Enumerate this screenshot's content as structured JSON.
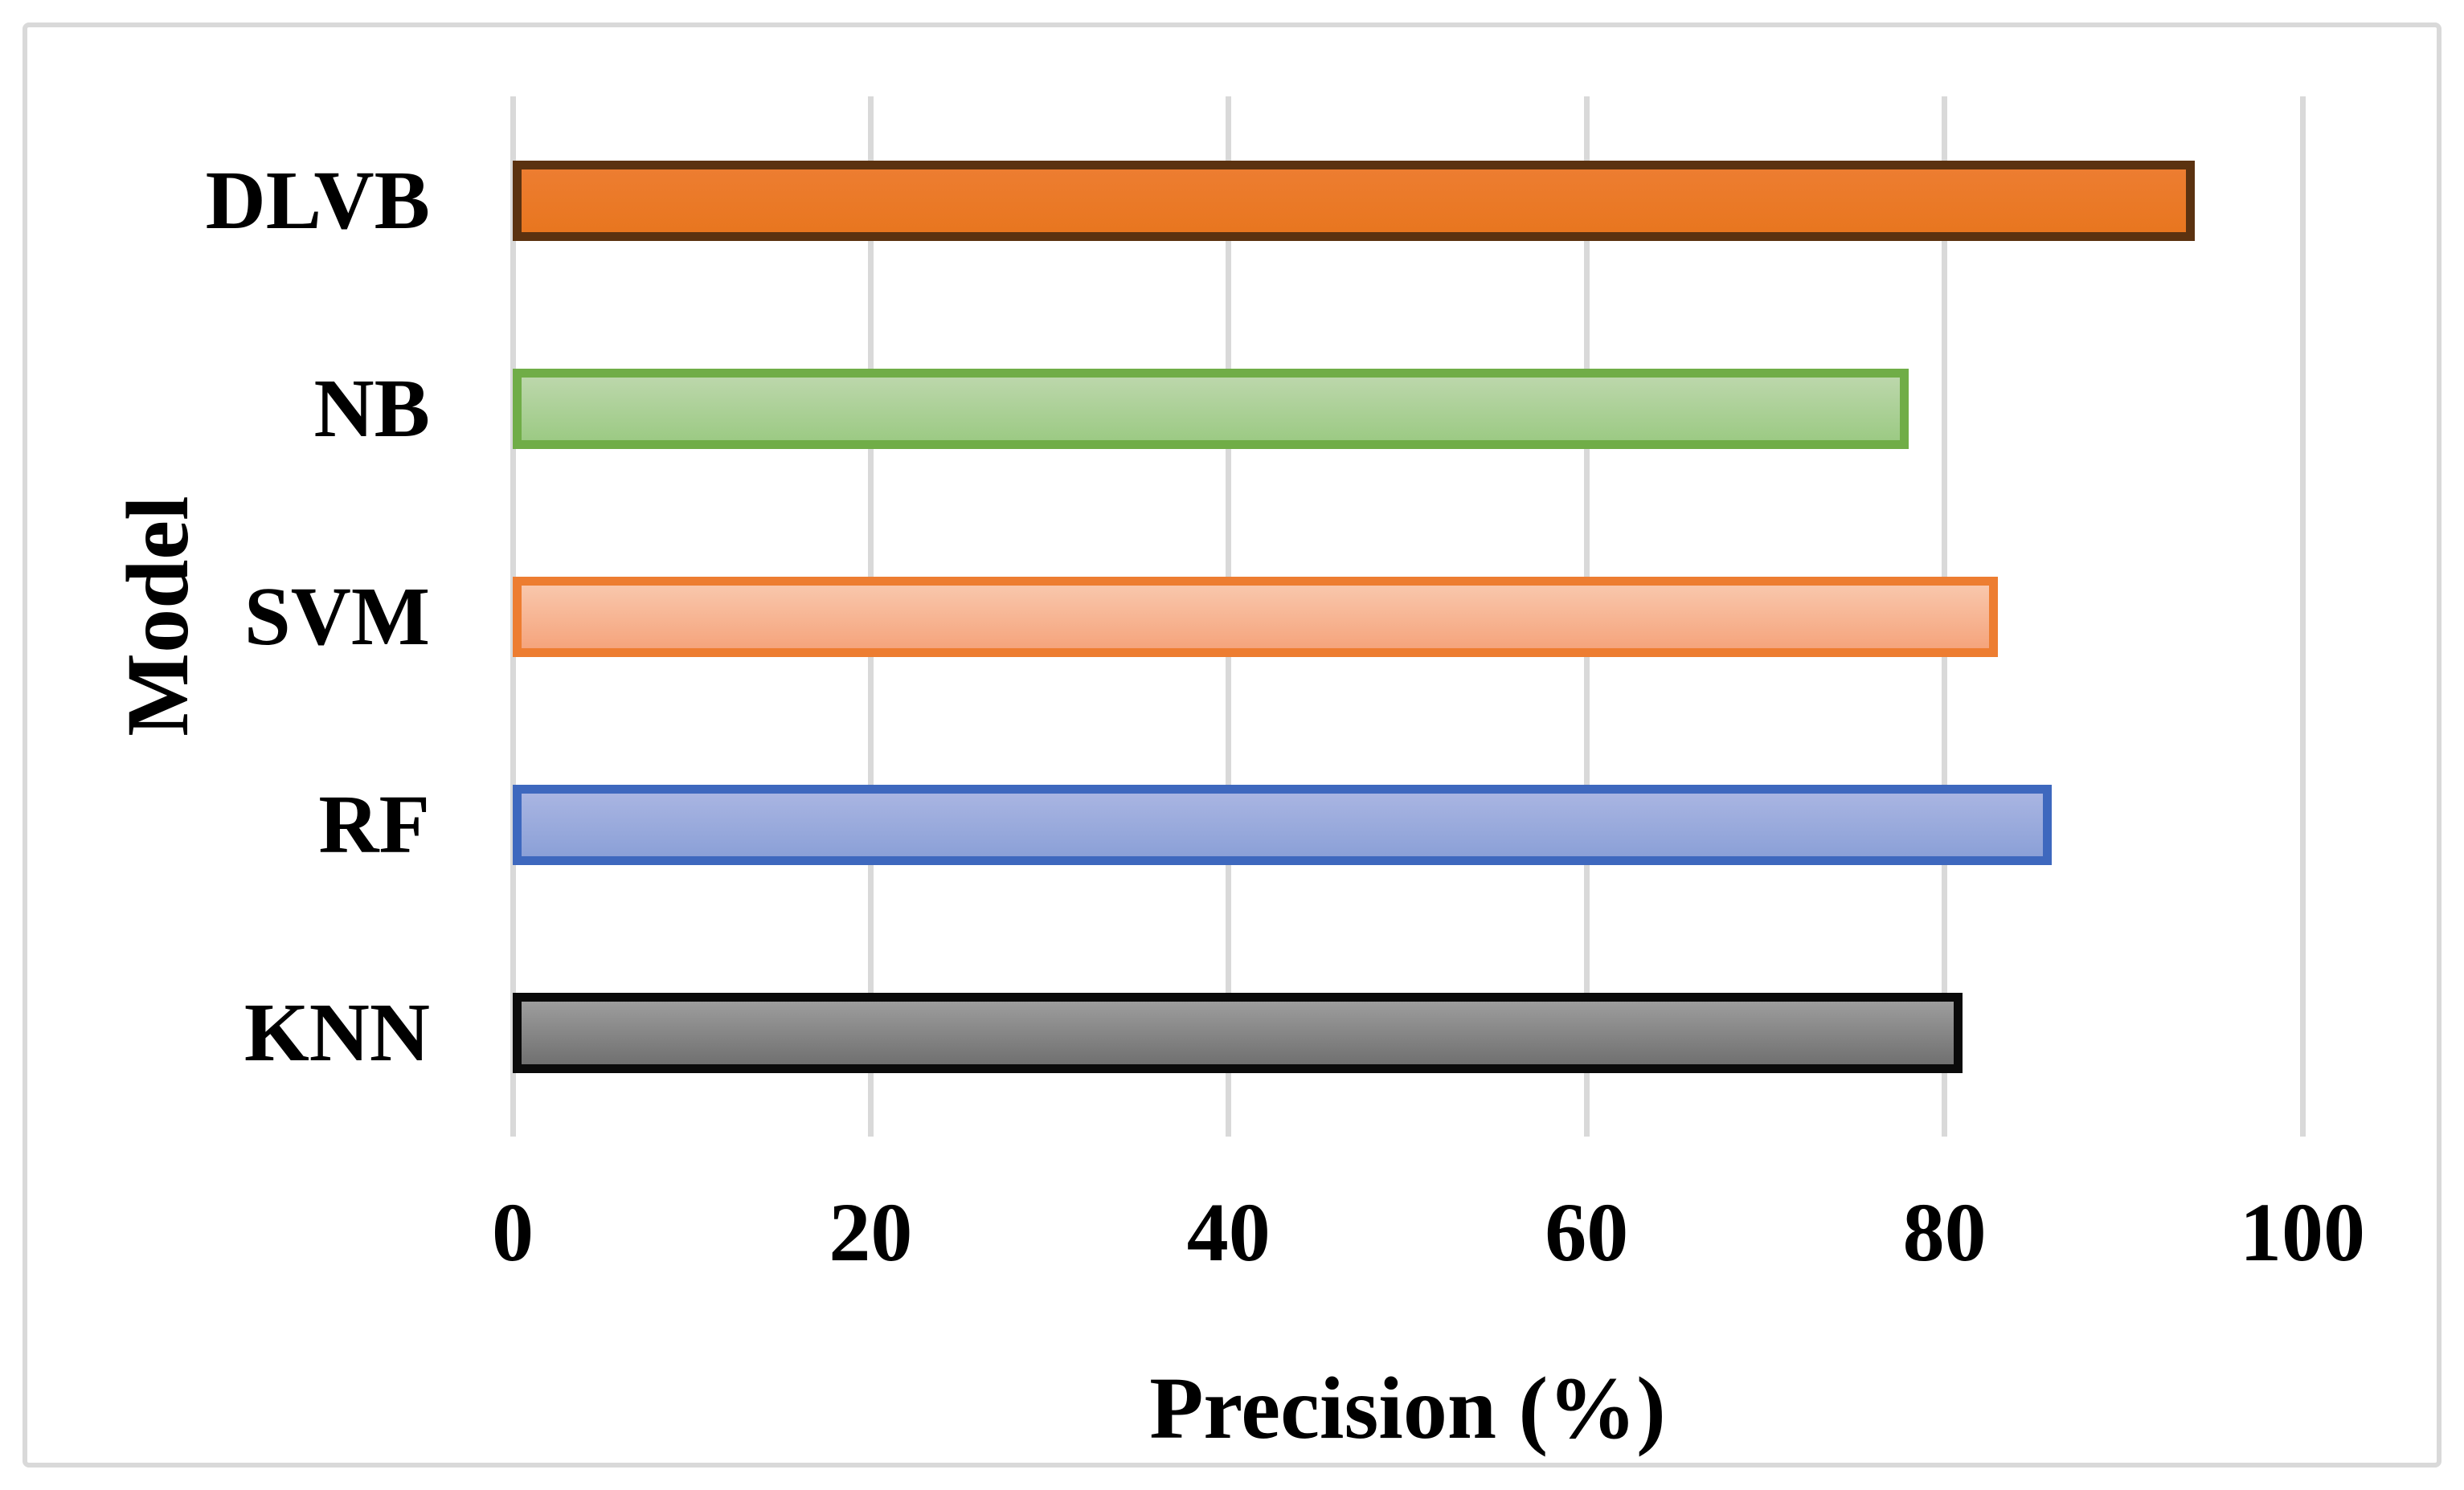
{
  "chart_data": {
    "type": "bar",
    "orientation": "horizontal",
    "title": "",
    "xlabel": "Precision (%)",
    "ylabel": "Model",
    "xlim": [
      0,
      100
    ],
    "xticks": [
      0,
      20,
      40,
      60,
      80,
      100
    ],
    "xtick_labels": [
      "0",
      "20",
      "40",
      "60",
      "80",
      "100"
    ],
    "categories": [
      "DLVB",
      "NB",
      "SVM",
      "RF",
      "KNN"
    ],
    "values": [
      94,
      78,
      83,
      86,
      81
    ],
    "grid": "vertical-gridlines-on",
    "legend": "none",
    "gridline_color": "#d9d9d9",
    "frame_color": "#d9d9d9",
    "background_color": "#ffffff",
    "text_color": "#000000",
    "bar_styles": [
      {
        "name": "DLVB",
        "fill_top": "#ED7D31",
        "fill_bottom": "#E8761F",
        "border": "#5B3210"
      },
      {
        "name": "NB",
        "fill_top": "#BCD7AB",
        "fill_bottom": "#9CCA84",
        "border": "#70AD47"
      },
      {
        "name": "SVM",
        "fill_top": "#F9C7AC",
        "fill_bottom": "#F5A47C",
        "border": "#ED7D31"
      },
      {
        "name": "RF",
        "fill_top": "#A9B5E2",
        "fill_bottom": "#8BA0D7",
        "border": "#3E68BE"
      },
      {
        "name": "KNN",
        "fill_top": "#9D9D9D",
        "fill_bottom": "#707070",
        "border": "#0A0A0A"
      }
    ]
  }
}
